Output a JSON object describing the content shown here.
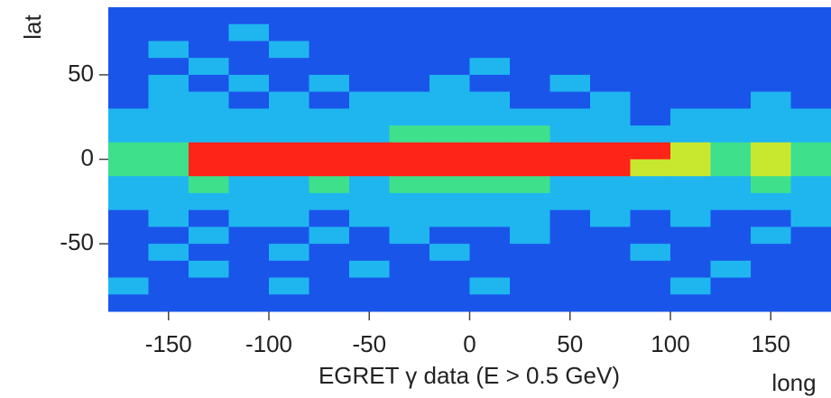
{
  "chart_data": {
    "type": "heatmap",
    "xlabel": "EGRET γ data (E > 0.5 GeV)",
    "xunit": "long",
    "ylabel": "lat",
    "xlim": [
      -180,
      180
    ],
    "ylim": [
      -90,
      90
    ],
    "xticks": [
      -150,
      -100,
      -50,
      0,
      50,
      100,
      150
    ],
    "yticks": [
      -50,
      0,
      50
    ],
    "x": [
      -170,
      -150,
      -130,
      -110,
      -90,
      -70,
      -50,
      -30,
      -10,
      10,
      30,
      50,
      70,
      90,
      110,
      130,
      150,
      170
    ],
    "y": [
      85,
      75,
      65,
      55,
      45,
      35,
      25,
      15,
      5,
      -5,
      -15,
      -25,
      -35,
      -45,
      -55,
      -65,
      -75,
      -85
    ],
    "colorscale": [
      "#0a24a8",
      "#1a55ea",
      "#1fb6f0",
      "#3ee08c",
      "#c8e830",
      "#ff2418"
    ],
    "z": [
      [
        1,
        1,
        1,
        1,
        1,
        1,
        1,
        1,
        1,
        1,
        1,
        1,
        1,
        1,
        1,
        1,
        1,
        1
      ],
      [
        1,
        1,
        1,
        2,
        1,
        1,
        1,
        1,
        1,
        1,
        1,
        1,
        1,
        1,
        1,
        1,
        1,
        1
      ],
      [
        1,
        2,
        1,
        1,
        2,
        1,
        1,
        1,
        1,
        1,
        1,
        1,
        1,
        1,
        1,
        1,
        1,
        1
      ],
      [
        1,
        1,
        2,
        1,
        1,
        1,
        1,
        1,
        1,
        2,
        1,
        1,
        1,
        1,
        1,
        1,
        1,
        1
      ],
      [
        1,
        2,
        1,
        2,
        1,
        2,
        1,
        1,
        2,
        1,
        1,
        2,
        1,
        1,
        1,
        1,
        1,
        1
      ],
      [
        1,
        2,
        2,
        1,
        2,
        1,
        2,
        2,
        2,
        2,
        1,
        1,
        2,
        1,
        1,
        1,
        2,
        1
      ],
      [
        2,
        2,
        2,
        2,
        2,
        2,
        2,
        2,
        2,
        2,
        2,
        2,
        2,
        1,
        2,
        2,
        2,
        2
      ],
      [
        2,
        2,
        2,
        2,
        2,
        2,
        2,
        3,
        3,
        3,
        3,
        2,
        2,
        2,
        2,
        2,
        2,
        2
      ],
      [
        3,
        3,
        5,
        5,
        5,
        5,
        5,
        5,
        5,
        5,
        5,
        5,
        5,
        5,
        4,
        3,
        4,
        3
      ],
      [
        3,
        3,
        5,
        5,
        5,
        5,
        5,
        5,
        5,
        5,
        5,
        5,
        5,
        4,
        4,
        3,
        4,
        3
      ],
      [
        2,
        2,
        3,
        2,
        2,
        3,
        2,
        3,
        3,
        3,
        3,
        2,
        2,
        2,
        2,
        2,
        3,
        2
      ],
      [
        2,
        2,
        2,
        2,
        2,
        2,
        2,
        2,
        2,
        2,
        2,
        2,
        2,
        2,
        2,
        2,
        2,
        2
      ],
      [
        1,
        2,
        1,
        2,
        2,
        1,
        2,
        2,
        2,
        2,
        2,
        1,
        2,
        1,
        2,
        1,
        1,
        2
      ],
      [
        1,
        1,
        2,
        1,
        1,
        2,
        1,
        2,
        1,
        1,
        2,
        1,
        1,
        1,
        1,
        1,
        2,
        1
      ],
      [
        1,
        2,
        1,
        1,
        2,
        1,
        1,
        1,
        2,
        1,
        1,
        1,
        1,
        2,
        1,
        1,
        1,
        1
      ],
      [
        1,
        1,
        2,
        1,
        1,
        1,
        2,
        1,
        1,
        1,
        1,
        1,
        1,
        1,
        1,
        2,
        1,
        1
      ],
      [
        2,
        1,
        1,
        1,
        2,
        1,
        1,
        1,
        1,
        2,
        1,
        1,
        1,
        1,
        2,
        1,
        1,
        1
      ],
      [
        1,
        1,
        1,
        1,
        1,
        1,
        1,
        1,
        1,
        1,
        1,
        1,
        1,
        1,
        1,
        1,
        1,
        1
      ]
    ]
  }
}
